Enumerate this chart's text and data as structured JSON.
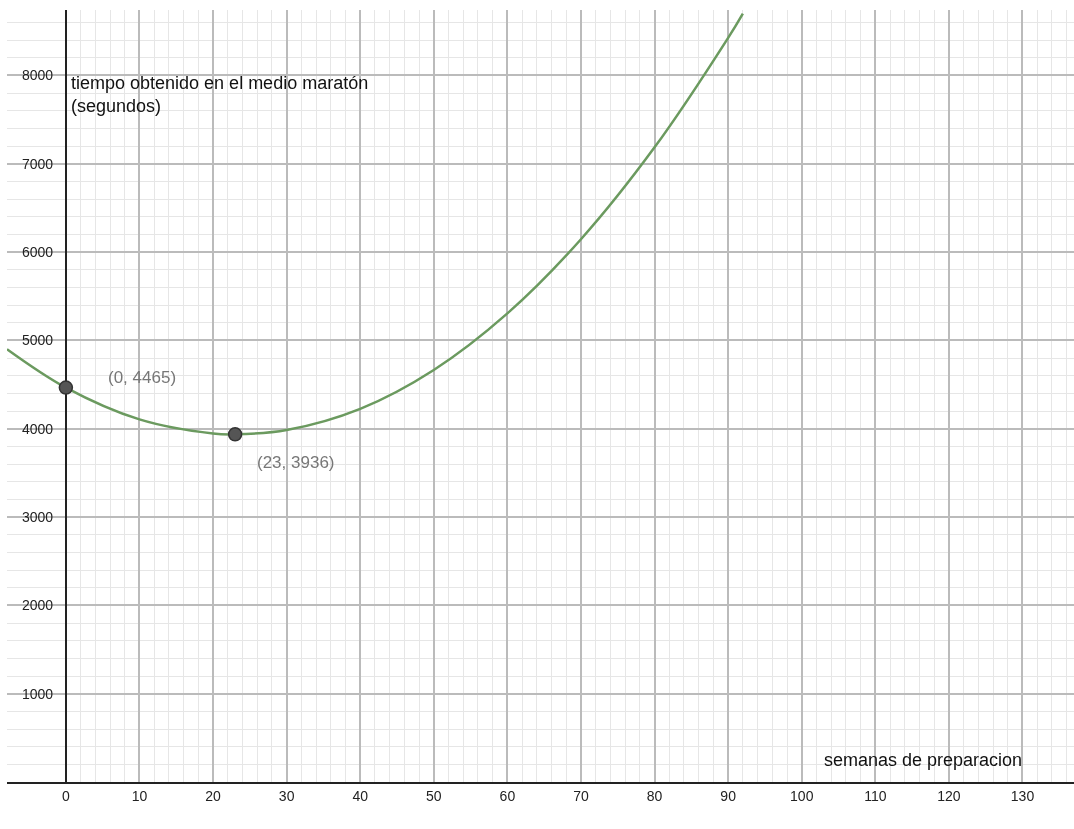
{
  "chart_data": {
    "type": "line",
    "xlabel": "semanas de preparacion",
    "ylabel": "tiempo obtenido en el medio maratón\n(segundos)",
    "series": [
      {
        "color": "#6b9a5f",
        "x": [
          -8,
          0,
          10,
          20,
          23,
          30,
          40,
          50,
          60,
          70,
          80,
          90,
          92
        ],
        "values": [
          4900,
          4465,
          4105,
          3945,
          3936,
          3985,
          4225,
          4665,
          5305,
          6145,
          7185,
          8425,
          8700
        ]
      },
      {
        "type": "scatter",
        "marker": "circle",
        "color": "#555555",
        "x": [
          0,
          23
        ],
        "values": [
          4465,
          3936
        ]
      }
    ],
    "annotations": [
      {
        "text": "(0, 4465)",
        "x": 0,
        "y": 4465
      },
      {
        "text": "(23, 3936)",
        "x": 23,
        "y": 3936
      }
    ],
    "xlim": [
      -8,
      137
    ],
    "ylim": [
      0,
      8740
    ],
    "xticks": [
      0,
      10,
      20,
      30,
      40,
      50,
      60,
      70,
      80,
      90,
      100,
      110,
      120,
      130
    ],
    "yticks": [
      1000,
      2000,
      3000,
      4000,
      5000,
      6000,
      7000,
      8000
    ],
    "grid": true
  }
}
